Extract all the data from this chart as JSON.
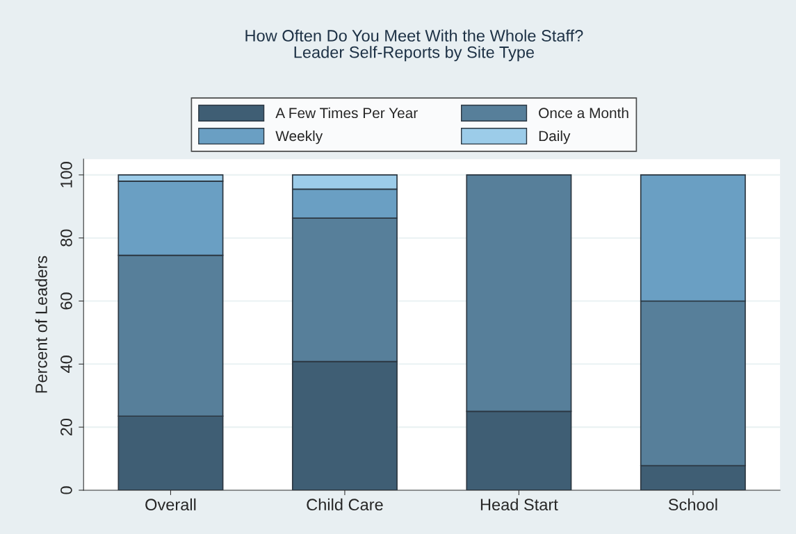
{
  "chart_data": {
    "type": "bar",
    "title": "How Often Do You Meet With the Whole Staff?\nLeader Self-Reports by Site Type",
    "ylabel": "Percent of Leaders",
    "categories": [
      "Overall",
      "Child Care",
      "Head Start",
      "School"
    ],
    "series": [
      {
        "name": "A Few Times Per Year",
        "color": "#3f5e74",
        "values": [
          23.5,
          40.8,
          25,
          7.8
        ]
      },
      {
        "name": "Once a Month",
        "color": "#577f9a",
        "values": [
          51.0,
          45.5,
          75,
          52.2
        ]
      },
      {
        "name": "Weekly",
        "color": "#6a9fc3",
        "values": [
          23.5,
          9.2,
          null,
          40
        ]
      },
      {
        "name": "Daily",
        "color": "#9ccce9",
        "values": [
          2.0,
          4.5,
          null,
          null
        ]
      }
    ],
    "stacked": true,
    "ylim": [
      0,
      105
    ],
    "yticks": [
      0,
      20,
      40,
      60,
      80,
      100
    ],
    "grid": "y",
    "legend": "top"
  }
}
